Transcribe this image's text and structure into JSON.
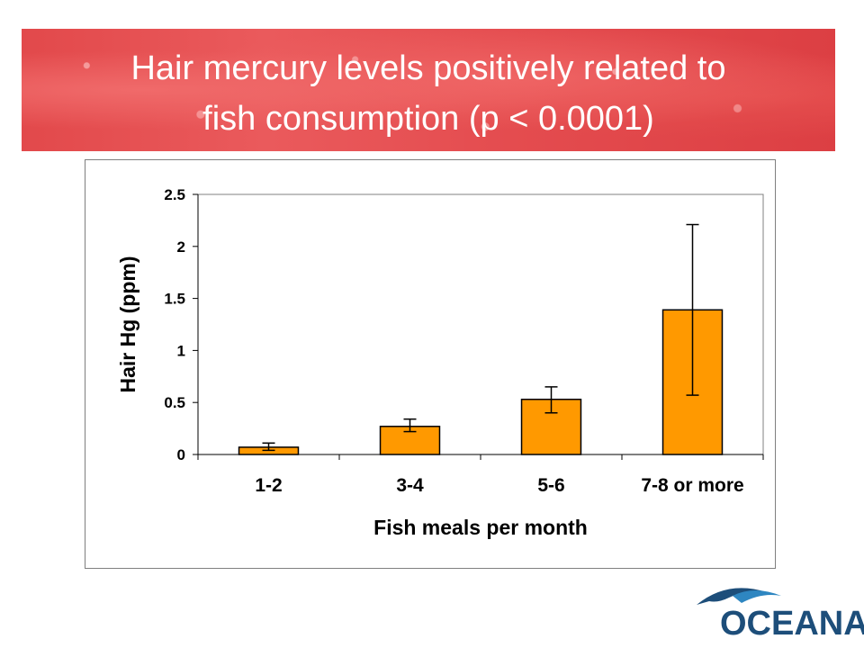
{
  "slide": {
    "title_line1": "Hair mercury levels positively related to",
    "title_line2": "fish consumption (p < 0.0001)"
  },
  "logo": {
    "text": "OCEANA",
    "icon": "dolphin-icon"
  },
  "colors": {
    "banner": "#e2494b",
    "bar_fill": "#ff9900",
    "logo": "#1d4e7a"
  },
  "chart_data": {
    "type": "bar",
    "categories": [
      "1-2",
      "3-4",
      "5-6",
      "7-8 or more"
    ],
    "values": [
      0.07,
      0.27,
      0.53,
      1.39
    ],
    "error_low": [
      0.04,
      0.22,
      0.4,
      0.57
    ],
    "error_high": [
      0.11,
      0.34,
      0.65,
      2.21
    ],
    "xlabel": "Fish meals per month",
    "ylabel": "Hair Hg (ppm)",
    "ylim": [
      0,
      2.5
    ],
    "yticks": [
      "0",
      "0.5",
      "1",
      "1.5",
      "2",
      "2.5"
    ],
    "grid": false,
    "legend": "none"
  }
}
